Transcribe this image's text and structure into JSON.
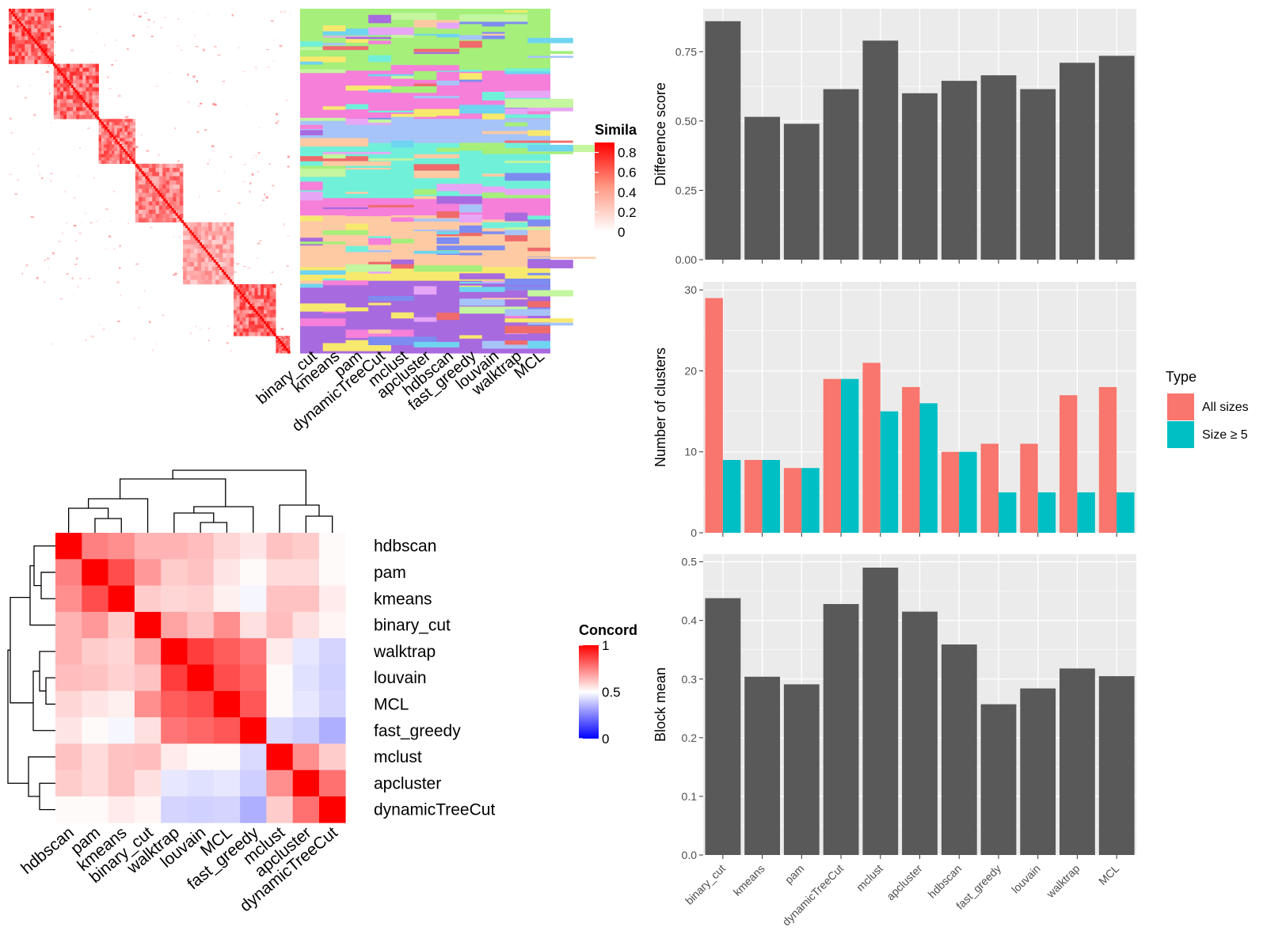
{
  "colors": {
    "panel_bg": "#ebebeb",
    "grid": "#ffffff",
    "bar": "#595959",
    "all_sizes": "#f8766d",
    "size_ge5": "#00bfc4",
    "sim_high": "#ff0000",
    "sim_low": "#ffffff",
    "conc_high": "#ff0000",
    "conc_mid": "#ffffff",
    "conc_low": "#0000ff"
  },
  "similarity_legend": {
    "title": "Simila",
    "ticks": [
      "0.8",
      "0.6",
      "0.4",
      "0.2",
      "0"
    ]
  },
  "assignment_columns": [
    "binary_cut",
    "kmeans",
    "pam",
    "dynamicTreeCut",
    "mclust",
    "apcluster",
    "hdbscan",
    "fast_greedy",
    "louvain",
    "walktrap",
    "MCL"
  ],
  "concordance_legend": {
    "title": "Concord",
    "ticks": [
      "1",
      "0.5",
      "0"
    ]
  },
  "chart_data": [
    {
      "type": "heatmap",
      "name": "similarity_matrix",
      "blocks": [
        [
          0,
          0.16,
          0.9
        ],
        [
          0.16,
          0.32,
          0.85
        ],
        [
          0.32,
          0.45,
          0.8
        ],
        [
          0.45,
          0.62,
          0.7
        ],
        [
          0.62,
          0.8,
          0.5
        ],
        [
          0.8,
          0.95,
          0.85
        ],
        [
          0.95,
          1,
          0.9
        ]
      ],
      "legend_title": "Simila",
      "legend_ticks": [
        0.8,
        0.6,
        0.4,
        0.2,
        0
      ]
    },
    {
      "type": "heatmap",
      "name": "cluster_assignments",
      "columns": [
        "binary_cut",
        "kmeans",
        "pam",
        "dynamicTreeCut",
        "mclust",
        "apcluster",
        "hdbscan",
        "fast_greedy",
        "louvain",
        "walktrap",
        "MCL"
      ],
      "segments": [
        {
          "from": 0,
          "to": 0.18,
          "color": "#a5ef7a"
        },
        {
          "from": 0.18,
          "to": 0.32,
          "color": "#f57fd9"
        },
        {
          "from": 0.32,
          "to": 0.39,
          "color": "#a6c4f8"
        },
        {
          "from": 0.39,
          "to": 0.55,
          "color": "#71f0d9"
        },
        {
          "from": 0.55,
          "to": 0.6,
          "color": "#f57fd9"
        },
        {
          "from": 0.6,
          "to": 0.75,
          "color": "#fecaa4"
        },
        {
          "from": 0.75,
          "to": 0.79,
          "color": "#f7e96e"
        },
        {
          "from": 0.79,
          "to": 1,
          "color": "#a86adf"
        }
      ]
    },
    {
      "type": "heatmap",
      "name": "concordance",
      "labels": [
        "hdbscan",
        "pam",
        "kmeans",
        "binary_cut",
        "walktrap",
        "louvain",
        "MCL",
        "fast_greedy",
        "mclust",
        "apcluster",
        "dynamicTreeCut"
      ],
      "values": [
        [
          1.0,
          0.75,
          0.72,
          0.65,
          0.65,
          0.63,
          0.58,
          0.55,
          0.62,
          0.6,
          0.51
        ],
        [
          0.75,
          1.0,
          0.85,
          0.7,
          0.6,
          0.62,
          0.55,
          0.51,
          0.57,
          0.57,
          0.51
        ],
        [
          0.72,
          0.85,
          1.0,
          0.6,
          0.58,
          0.59,
          0.53,
          0.47,
          0.62,
          0.62,
          0.54
        ],
        [
          0.65,
          0.7,
          0.6,
          1.0,
          0.68,
          0.62,
          0.72,
          0.56,
          0.63,
          0.56,
          0.52
        ],
        [
          0.65,
          0.6,
          0.58,
          0.68,
          1.0,
          0.88,
          0.82,
          0.77,
          0.54,
          0.42,
          0.36
        ],
        [
          0.63,
          0.62,
          0.59,
          0.62,
          0.88,
          1.0,
          0.85,
          0.8,
          0.51,
          0.4,
          0.35
        ],
        [
          0.58,
          0.55,
          0.53,
          0.72,
          0.82,
          0.85,
          1.0,
          0.83,
          0.51,
          0.42,
          0.36
        ],
        [
          0.55,
          0.51,
          0.47,
          0.56,
          0.77,
          0.8,
          0.83,
          1.0,
          0.38,
          0.34,
          0.24
        ],
        [
          0.62,
          0.57,
          0.62,
          0.63,
          0.54,
          0.51,
          0.51,
          0.38,
          1.0,
          0.72,
          0.6
        ],
        [
          0.6,
          0.57,
          0.62,
          0.56,
          0.42,
          0.4,
          0.42,
          0.34,
          0.72,
          1.0,
          0.78
        ],
        [
          0.51,
          0.51,
          0.54,
          0.52,
          0.36,
          0.35,
          0.36,
          0.24,
          0.6,
          0.78,
          1.0
        ]
      ],
      "legend_title": "Concord",
      "legend_ticks": [
        1,
        0.5,
        0
      ]
    },
    {
      "type": "bar",
      "name": "difference_score",
      "categories": [
        "binary_cut",
        "kmeans",
        "pam",
        "dynamicTreeCut",
        "mclust",
        "apcluster",
        "hdbscan",
        "fast_greedy",
        "louvain",
        "walktrap",
        "MCL"
      ],
      "values": [
        0.86,
        0.515,
        0.49,
        0.615,
        0.79,
        0.6,
        0.645,
        0.665,
        0.615,
        0.71,
        0.735
      ],
      "ylabel": "Difference score",
      "ylim": [
        0,
        0.905
      ],
      "yticks": [
        0,
        0.25,
        0.5,
        0.75
      ],
      "ytick_labels": [
        "0.00",
        "0.25",
        "0.50",
        "0.75"
      ],
      "grid": true
    },
    {
      "type": "bar",
      "name": "number_of_clusters",
      "categories": [
        "binary_cut",
        "kmeans",
        "pam",
        "dynamicTreeCut",
        "mclust",
        "apcluster",
        "hdbscan",
        "fast_greedy",
        "louvain",
        "walktrap",
        "MCL"
      ],
      "series": [
        {
          "name": "All sizes",
          "values": [
            29,
            9,
            8,
            19,
            21,
            18,
            10,
            11,
            11,
            17,
            18
          ]
        },
        {
          "name": "Size ≥ 5",
          "values": [
            9,
            9,
            8,
            19,
            15,
            16,
            10,
            5,
            5,
            5,
            5
          ]
        }
      ],
      "ylabel": "Number of clusters",
      "ylim": [
        0,
        31
      ],
      "yticks": [
        0,
        10,
        20,
        30
      ],
      "ytick_labels": [
        "0",
        "10",
        "20",
        "30"
      ],
      "legend_title": "Type",
      "legend": "right",
      "grid": true
    },
    {
      "type": "bar",
      "name": "block_mean",
      "categories": [
        "binary_cut",
        "kmeans",
        "pam",
        "dynamicTreeCut",
        "mclust",
        "apcluster",
        "hdbscan",
        "fast_greedy",
        "louvain",
        "walktrap",
        "MCL"
      ],
      "values": [
        0.438,
        0.304,
        0.291,
        0.428,
        0.49,
        0.415,
        0.359,
        0.257,
        0.284,
        0.318,
        0.305
      ],
      "ylabel": "Block mean",
      "ylim": [
        0,
        0.513
      ],
      "yticks": [
        0,
        0.1,
        0.2,
        0.3,
        0.4,
        0.5
      ],
      "ytick_labels": [
        "0.0",
        "0.1",
        "0.2",
        "0.3",
        "0.4",
        "0.5"
      ],
      "grid": true
    }
  ]
}
